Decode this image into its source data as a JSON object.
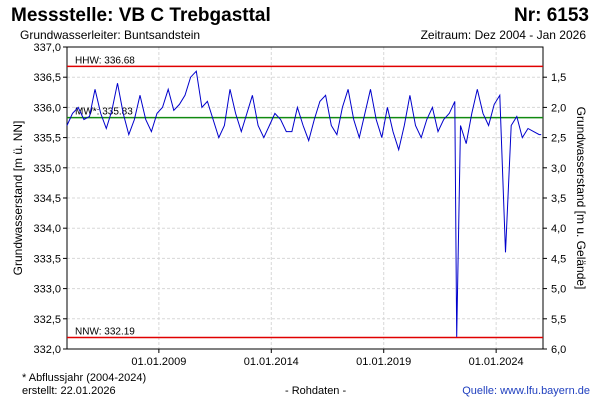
{
  "header": {
    "station": "Messstelle: VB C Trebgasttal",
    "number": "Nr: 6153",
    "aquifer": "Grundwasserleiter: Buntsandstein",
    "period": "Zeitraum: Dez 2004 - Jan 2026"
  },
  "footer": {
    "note": "* Abflussjahr (2004-2024)",
    "created": "erstellt:  22.01.2026",
    "data_kind": "- Rohdaten -",
    "source": "Quelle: www.lfu.bayern.de"
  },
  "colors": {
    "series": "#0000cc",
    "hhw": "#e00000",
    "nnw": "#e00000",
    "mw": "#118a11",
    "grid": "#d8d8d8"
  },
  "chart_data": {
    "type": "line",
    "ylabel": "Grundwasserstand [m ü. NN]",
    "y2label": "Grundwasserstand [m u. Gelände]",
    "ylim": [
      332.0,
      337.0
    ],
    "yticks": [
      "337,0",
      "336,5",
      "336,0",
      "335,5",
      "335,0",
      "334,5",
      "334,0",
      "333,5",
      "333,0",
      "332,5",
      "332,0"
    ],
    "y2ticks": [
      "1,5",
      "2,0",
      "2,5",
      "3,0",
      "3,5",
      "4,0",
      "4,5",
      "5,0",
      "5,5",
      "6,0"
    ],
    "xlim": [
      "2004-12-01",
      "2026-01-31"
    ],
    "xticks": [
      "01.01.2009",
      "01.01.2014",
      "01.01.2019",
      "01.01.2024"
    ],
    "grid": true,
    "reference_lines": [
      {
        "label": "HHW: 336.68",
        "value": 336.68
      },
      {
        "label": "MW*: 335.83",
        "value": 335.83
      },
      {
        "label": "NNW: 332.19",
        "value": 332.19
      }
    ],
    "series": [
      {
        "x": [
          "2004-12",
          "2005-03",
          "2005-06",
          "2005-09",
          "2005-12",
          "2006-03",
          "2006-06",
          "2006-09",
          "2006-12",
          "2007-03",
          "2007-06",
          "2007-09",
          "2007-12",
          "2008-03",
          "2008-06",
          "2008-09",
          "2008-12",
          "2009-03",
          "2009-06",
          "2009-09",
          "2009-12",
          "2010-03",
          "2010-06",
          "2010-09",
          "2010-12",
          "2011-03",
          "2011-06",
          "2011-09",
          "2011-12",
          "2012-03",
          "2012-06",
          "2012-09",
          "2012-12",
          "2013-03",
          "2013-06",
          "2013-09",
          "2013-12",
          "2014-03",
          "2014-06",
          "2014-09",
          "2014-12",
          "2015-03",
          "2015-06",
          "2015-09",
          "2015-12",
          "2016-03",
          "2016-06",
          "2016-09",
          "2016-12",
          "2017-03",
          "2017-06",
          "2017-09",
          "2017-12",
          "2018-03",
          "2018-06",
          "2018-09",
          "2018-12",
          "2019-03",
          "2019-06",
          "2019-09",
          "2019-12",
          "2020-03",
          "2020-06",
          "2020-09",
          "2020-12",
          "2021-03",
          "2021-06",
          "2021-09",
          "2021-12",
          "2022-03",
          "2022-04",
          "2022-06",
          "2022-09",
          "2022-12",
          "2023-03",
          "2023-06",
          "2023-09",
          "2023-12",
          "2024-03",
          "2024-06",
          "2024-09",
          "2024-12",
          "2025-03",
          "2025-06",
          "2025-09",
          "2025-12",
          "2026-01"
        ],
        "y": [
          335.7,
          335.9,
          336.0,
          335.8,
          335.85,
          336.3,
          335.9,
          335.65,
          335.95,
          336.4,
          335.9,
          335.55,
          335.8,
          336.2,
          335.8,
          335.6,
          335.9,
          336.0,
          336.3,
          335.95,
          336.05,
          336.2,
          336.5,
          336.6,
          336.0,
          336.1,
          335.8,
          335.5,
          335.7,
          336.3,
          335.9,
          335.6,
          335.9,
          336.2,
          335.7,
          335.5,
          335.7,
          335.9,
          335.8,
          335.6,
          335.6,
          336.0,
          335.7,
          335.45,
          335.8,
          336.1,
          336.2,
          335.7,
          335.55,
          336.0,
          336.3,
          335.8,
          335.5,
          335.9,
          336.3,
          335.8,
          335.5,
          336.0,
          335.6,
          335.3,
          335.7,
          336.2,
          335.7,
          335.5,
          335.8,
          336.0,
          335.6,
          335.8,
          335.9,
          336.1,
          332.2,
          335.7,
          335.4,
          335.9,
          336.3,
          335.9,
          335.7,
          336.05,
          336.2,
          333.6,
          335.7,
          335.85,
          335.5,
          335.65,
          335.6,
          335.55,
          335.55
        ]
      }
    ]
  }
}
